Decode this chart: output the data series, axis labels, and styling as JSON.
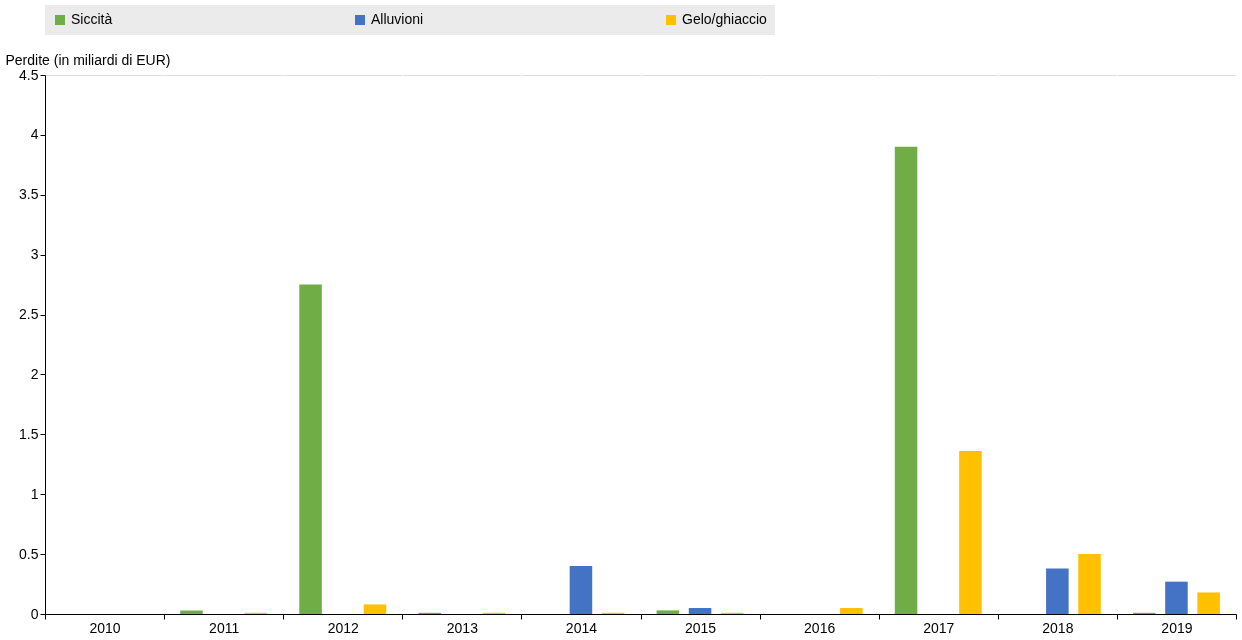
{
  "chart_data": {
    "type": "bar",
    "ylabel": "Perdite (in miliardi di EUR)",
    "categories": [
      "2010",
      "2011",
      "2012",
      "2013",
      "2014",
      "2015",
      "2016",
      "2017",
      "2018",
      "2019"
    ],
    "series": [
      {
        "name": "Siccità",
        "color": "#70ad47",
        "values": [
          0,
          0.03,
          2.75,
          0.01,
          0,
          0.03,
          0,
          3.9,
          0,
          0.01
        ]
      },
      {
        "name": "Alluvioni",
        "color": "#4472c4",
        "values": [
          0,
          0,
          0,
          0,
          0.4,
          0.05,
          0,
          0,
          0.38,
          0.27
        ]
      },
      {
        "name": "Gelo/ghiaccio",
        "color": "#ffc000",
        "values": [
          0,
          0.01,
          0.08,
          0.01,
          0.01,
          0.01,
          0.05,
          1.36,
          0.5,
          0.18
        ]
      }
    ],
    "ylim": [
      0,
      4.5
    ],
    "yticks": [
      0,
      0.5,
      1,
      1.5,
      2,
      2.5,
      3,
      3.5,
      4,
      4.5
    ],
    "grid": "x",
    "legend": "top"
  }
}
